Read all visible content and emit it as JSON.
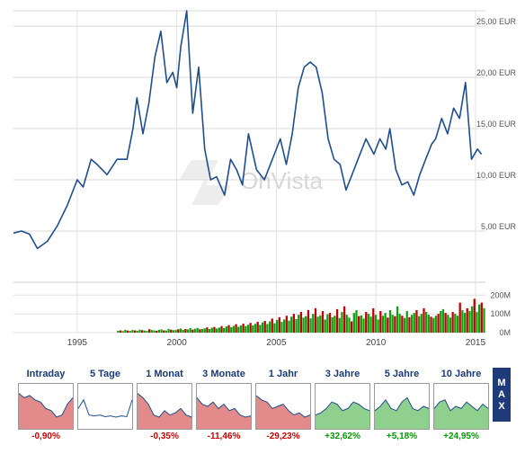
{
  "chart_data": {
    "type": "line",
    "title": "",
    "currency_unit": "EUR",
    "x": [
      1991.8,
      1992.2,
      1992.6,
      1993.0,
      1993.5,
      1994.0,
      1994.5,
      1995.0,
      1995.3,
      1995.7,
      1996.0,
      1996.5,
      1997.0,
      1997.5,
      1997.8,
      1998.0,
      1998.3,
      1998.6,
      1998.9,
      1999.2,
      1999.5,
      1999.8,
      2000.0,
      2000.2,
      2000.5,
      2000.8,
      2001.1,
      2001.4,
      2001.7,
      2002.0,
      2002.4,
      2002.7,
      2003.0,
      2003.3,
      2003.6,
      2004.0,
      2004.4,
      2004.8,
      2005.2,
      2005.5,
      2005.8,
      2006.1,
      2006.4,
      2006.7,
      2007.0,
      2007.3,
      2007.6,
      2007.9,
      2008.2,
      2008.5,
      2008.8,
      2009.1,
      2009.5,
      2009.9,
      2010.2,
      2010.5,
      2010.7,
      2011.0,
      2011.3,
      2011.6,
      2011.9,
      2012.2,
      2012.5,
      2012.8,
      2013.0,
      2013.3,
      2013.6,
      2013.9,
      2014.2,
      2014.5,
      2014.8,
      2015.1,
      2015.3
    ],
    "y": [
      4.8,
      5.0,
      4.7,
      3.3,
      4.0,
      5.5,
      7.5,
      10.0,
      9.3,
      12.0,
      11.5,
      10.5,
      12.0,
      12.0,
      15.0,
      18.0,
      14.5,
      17.5,
      22.0,
      24.5,
      19.5,
      20.5,
      19.0,
      23.0,
      26.5,
      16.5,
      21.0,
      13.0,
      10.0,
      10.3,
      8.5,
      12.0,
      11.0,
      9.5,
      14.5,
      11.0,
      10.0,
      12.0,
      14.0,
      11.5,
      14.5,
      19.0,
      21.0,
      21.5,
      21.0,
      18.5,
      14.0,
      12.0,
      11.5,
      9.0,
      10.5,
      12.0,
      14.0,
      12.5,
      14.0,
      13.0,
      15.0,
      11.0,
      9.5,
      9.8,
      8.5,
      10.5,
      12.0,
      13.5,
      14.0,
      16.0,
      14.5,
      17.0,
      16.0,
      19.5,
      12.0,
      13.0,
      12.5
    ],
    "ylim": [
      0,
      26.5
    ],
    "y_ticks": [
      "5,00 EUR",
      "10,00 EUR",
      "15,00 EUR",
      "20,00 EUR",
      "25,00 EUR"
    ],
    "y_tick_values": [
      5,
      10,
      15,
      20,
      25
    ],
    "x_ticks": [
      "1995",
      "2000",
      "2005",
      "2010",
      "2015"
    ],
    "x_tick_values": [
      1995,
      2000,
      2005,
      2010,
      2015
    ],
    "xlim": [
      1991.8,
      2015.5
    ],
    "line_color": "#1f4e8c",
    "watermark": "OnVista",
    "grid": true,
    "volume": {
      "type": "bar",
      "ylim": [
        0,
        230
      ],
      "y_ticks": [
        "0M",
        "100M",
        "200M"
      ],
      "y_tick_values": [
        0,
        100,
        200
      ],
      "start": 1997.0,
      "end": 2015.5,
      "values": [
        10,
        12,
        8,
        15,
        11,
        9,
        14,
        12,
        10,
        16,
        13,
        11,
        9,
        18,
        14,
        12,
        10,
        15,
        17,
        12,
        11,
        20,
        16,
        13,
        14,
        18,
        22,
        15,
        19,
        17,
        24,
        16,
        21,
        25,
        18,
        20,
        23,
        28,
        19,
        26,
        30,
        22,
        27,
        35,
        25,
        33,
        40,
        29,
        36,
        45,
        31,
        38,
        48,
        35,
        42,
        52,
        39,
        47,
        58,
        41,
        55,
        62,
        46,
        60,
        75,
        50,
        68,
        82,
        57,
        70,
        90,
        64,
        85,
        100,
        72,
        95,
        110,
        80,
        88,
        120,
        76,
        100,
        130,
        85,
        92,
        115,
        70,
        98,
        105,
        82,
        90,
        125,
        78,
        110,
        140,
        95,
        80,
        60,
        105,
        120,
        88,
        92,
        75,
        110,
        100,
        85,
        130,
        95,
        70,
        115,
        90,
        105,
        80,
        120,
        95,
        88,
        140,
        100,
        90,
        78,
        115,
        82,
        95,
        105,
        120,
        88,
        100,
        130,
        110,
        95,
        85,
        78,
        90,
        100,
        115,
        125,
        105,
        95,
        80,
        110,
        100,
        90,
        160,
        120,
        105,
        130,
        115,
        140,
        180,
        110,
        150,
        160,
        130
      ],
      "up_color": "#10a010",
      "down_color": "#c00000"
    }
  },
  "tabs": [
    {
      "label": "Intraday",
      "change": "-0,90%",
      "trend": "neg"
    },
    {
      "label": "5 Tage",
      "change": "",
      "trend": "none"
    },
    {
      "label": "1 Monat",
      "change": "-0,35%",
      "trend": "neg"
    },
    {
      "label": "3 Monate",
      "change": "-11,46%",
      "trend": "neg"
    },
    {
      "label": "1 Jahr",
      "change": "-29,23%",
      "trend": "neg"
    },
    {
      "label": "3 Jahre",
      "change": "+32,62%",
      "trend": "pos"
    },
    {
      "label": "5 Jahre",
      "change": "+5,18%",
      "trend": "pos"
    },
    {
      "label": "10 Jahre",
      "change": "+24,95%",
      "trend": "pos"
    }
  ],
  "max_button": {
    "label": "MAX"
  }
}
